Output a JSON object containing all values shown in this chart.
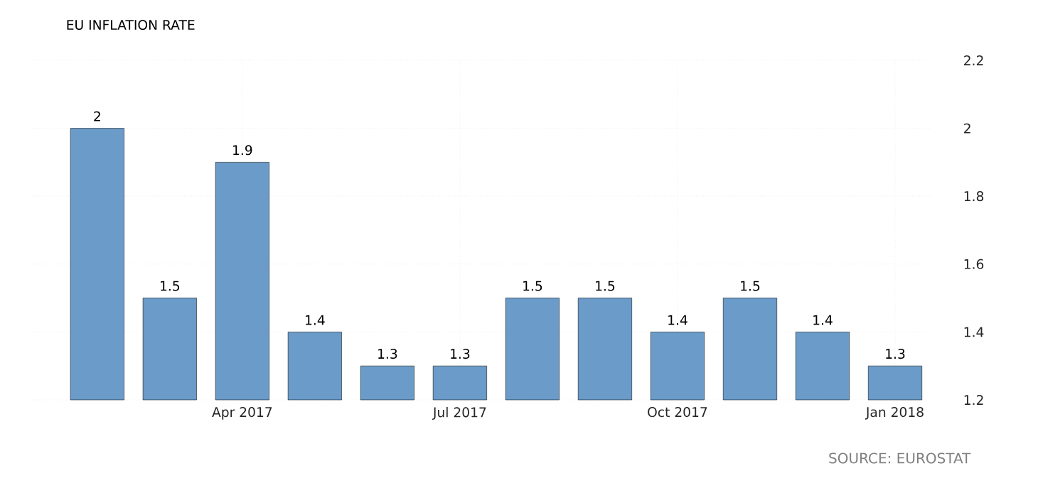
{
  "chart_data": {
    "type": "bar",
    "title": "EU INFLATION RATE",
    "categories": [
      null,
      null,
      "Apr 2017",
      null,
      null,
      "Jul 2017",
      null,
      null,
      "Oct 2017",
      null,
      null,
      "Jan 2018"
    ],
    "values": [
      2,
      1.5,
      1.9,
      1.4,
      1.3,
      1.3,
      1.5,
      1.5,
      1.4,
      1.5,
      1.4,
      1.3
    ],
    "color": "#6a9bc9",
    "ylim": [
      1.2,
      2.2
    ],
    "yticks": [
      1.2,
      1.4,
      1.6,
      1.8,
      2,
      2.2
    ],
    "grid": true,
    "data_labels": true,
    "annotations": [
      "SOURCE: EUROSTAT"
    ]
  }
}
